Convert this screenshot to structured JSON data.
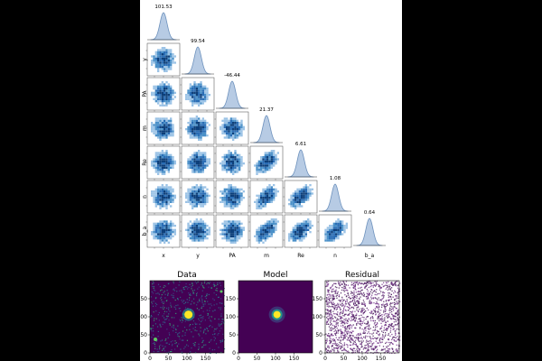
{
  "chart_data": [
    {
      "type": "corner",
      "parameters": [
        "x",
        "y",
        "PA",
        "m",
        "Re",
        "n",
        "b_a"
      ],
      "best_fit_labels": [
        "101.53",
        "99.54",
        "-46.44",
        "21.37",
        "6.61",
        "1.08",
        "0.64"
      ],
      "colors": {
        "hist": "#4a90c8",
        "kde_fill": "#b7cbe4",
        "kde_line": "#6e92bd"
      }
    },
    {
      "type": "heatmap",
      "panels": [
        {
          "title": "Data",
          "description": "noisy image with central bright source"
        },
        {
          "title": "Model",
          "description": "smooth model of central source"
        },
        {
          "title": "Residual",
          "description": "residual noise"
        }
      ],
      "x_ticks": [
        "0",
        "50",
        "100",
        "150"
      ],
      "y_ticks": [
        "0",
        "50",
        "100",
        "150"
      ],
      "colors": {
        "bg_dark": "#440154",
        "bright": "#fde725",
        "mid": "#21918c",
        "light": "#f4f0f7"
      }
    }
  ]
}
